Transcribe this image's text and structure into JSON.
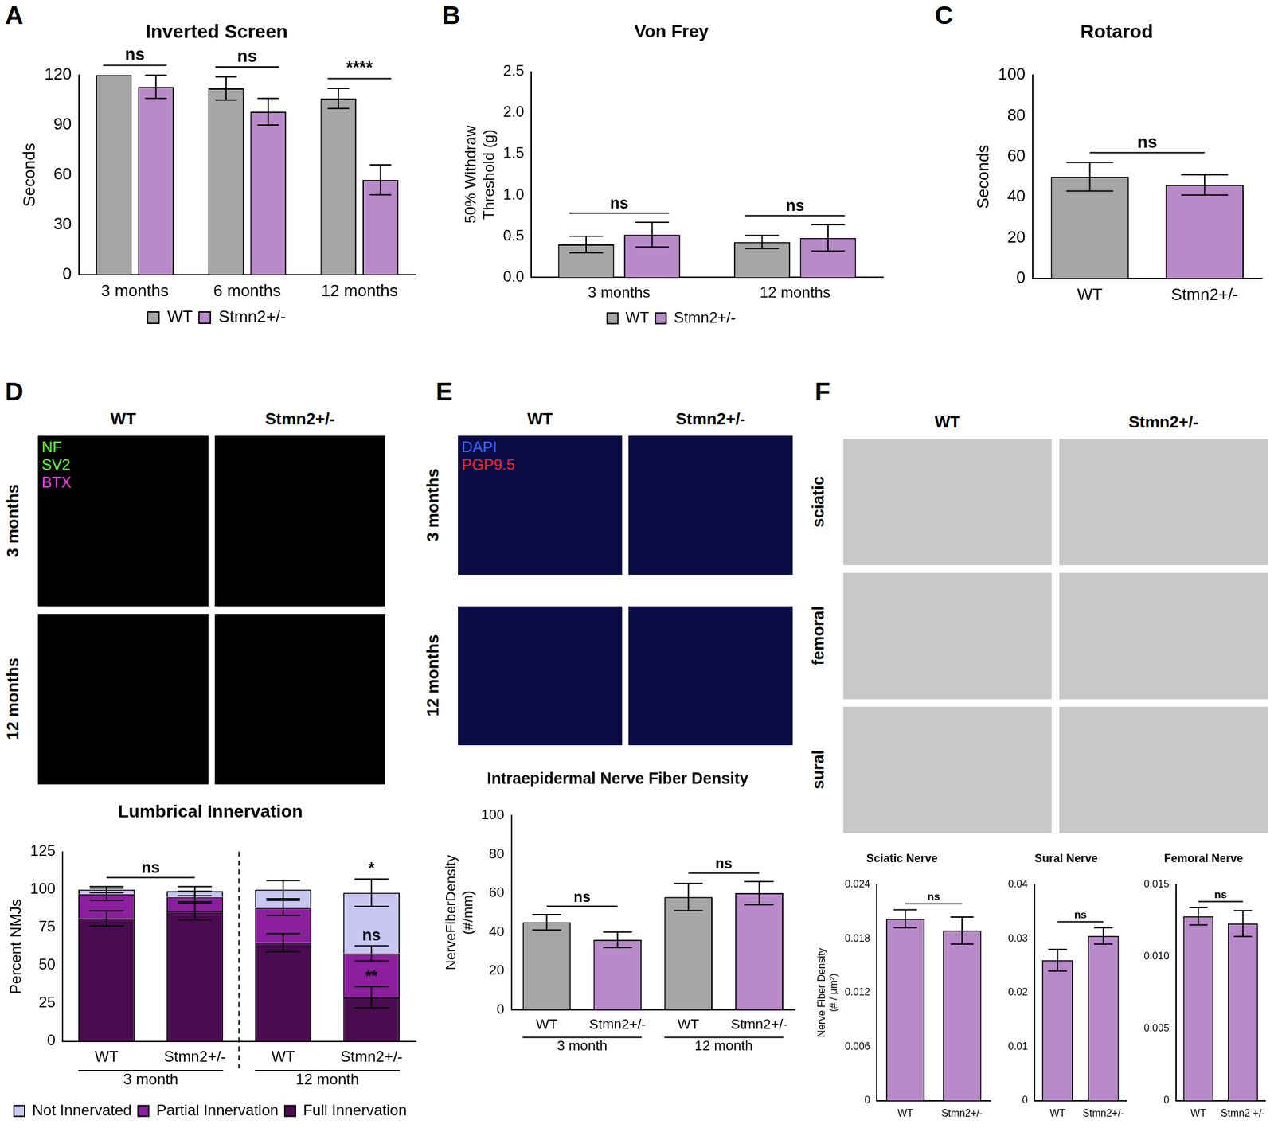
{
  "chart_data": [
    {
      "type": "bar",
      "title": "Inverted Screen",
      "ylabel": "Seconds",
      "categories": [
        "3 months",
        "6 months",
        "12 months"
      ],
      "series": [
        {
          "name": "WT",
          "color": "#a6a6a6",
          "values": [
            120,
            112,
            106
          ],
          "errors": [
            0,
            7,
            6
          ]
        },
        {
          "name": "Stmn2+/-",
          "color": "#b98ac9",
          "values": [
            113,
            98,
            57
          ],
          "errors": [
            7,
            8,
            9
          ]
        }
      ],
      "ylim": [
        0,
        120
      ],
      "yticks": [
        0,
        30,
        60,
        90,
        120
      ],
      "grid": false,
      "legend": "bottom",
      "annotations": [
        {
          "text": "ns",
          "category": 0
        },
        {
          "text": "ns",
          "category": 1
        },
        {
          "text": "****",
          "category": 2
        }
      ]
    },
    {
      "type": "bar",
      "title": "Von Frey",
      "ylabel": [
        "50% Withdraw",
        "Threshold (g)"
      ],
      "categories": [
        "3 months",
        "12 months"
      ],
      "series": [
        {
          "name": "WT",
          "color": "#a6a6a6",
          "values": [
            0.4,
            0.43
          ],
          "errors": [
            0.1,
            0.08
          ]
        },
        {
          "name": "Stmn2+/-",
          "color": "#b98ac9",
          "values": [
            0.52,
            0.48
          ],
          "errors": [
            0.15,
            0.16
          ]
        }
      ],
      "ylim": [
        0,
        2.5
      ],
      "yticks": [
        {
          "value": 0,
          "label": "0.0"
        },
        0.5,
        {
          "value": 1,
          "label": "1.0"
        },
        1.5,
        {
          "value": 2,
          "label": "2.0"
        },
        2.5
      ],
      "grid": false,
      "legend": "bottom",
      "annotations": [
        {
          "text": "ns",
          "category": 0
        },
        {
          "text": "ns",
          "category": 1
        }
      ]
    },
    {
      "type": "bar",
      "title": "Rotarod",
      "ylabel": "Seconds",
      "categories": [
        "WT",
        "Stmn2+/-"
      ],
      "values": [
        50,
        46
      ],
      "errors": [
        7,
        5
      ],
      "colors": [
        "#a6a6a6",
        "#b98ac9"
      ],
      "ylim": [
        0,
        100
      ],
      "yticks": [
        0,
        20,
        40,
        60,
        80,
        100
      ],
      "grid": false,
      "annotations": [
        {
          "text": "ns",
          "from": 0,
          "to": 1
        }
      ]
    },
    {
      "type": "bar",
      "title": "Lumbrical Innervation",
      "ylabel": "Percent NMJs",
      "stacked": true,
      "categories": [
        "WT",
        "Stmn2+/-",
        "WT",
        "Stmn2+/-"
      ],
      "groups": [
        {
          "label": "3 month",
          "categories": [
            0,
            1
          ]
        },
        {
          "label": "12 month",
          "categories": [
            2,
            3
          ]
        }
      ],
      "series": [
        {
          "name": "Full Innervation",
          "color": "#4a0b50",
          "values": [
            81,
            86,
            65,
            29
          ],
          "errors": [
            5,
            6,
            6,
            7
          ]
        },
        {
          "name": "Partial Innervation",
          "color": "#8b1f9e",
          "values": [
            16,
            9,
            23,
            29
          ],
          "errors": [
            4,
            4,
            5,
            5
          ]
        },
        {
          "name": "Not Innervated",
          "color": "#c9c6f2",
          "values": [
            3,
            4,
            12,
            40
          ],
          "errors": [
            2,
            3,
            6,
            9
          ]
        }
      ],
      "ylim": [
        0,
        125
      ],
      "yticks": [
        0,
        25,
        50,
        75,
        100,
        125
      ],
      "grid": false,
      "legend": "bottom",
      "annotations": [
        {
          "text": "ns",
          "from": 0,
          "to": 1
        },
        {
          "text": "*",
          "category": 3,
          "series": "Not Innervated"
        },
        {
          "text": "ns",
          "category": 3,
          "series": "Partial Innervation"
        },
        {
          "text": "**",
          "category": 3,
          "series": "Full Innervation"
        }
      ]
    },
    {
      "type": "bar",
      "title": "Intraepidermal Nerve Fiber Density",
      "ylabel": [
        "NerveFiberDensity",
        "(#/mm)"
      ],
      "categories": [
        "WT",
        "Stmn2+/-",
        "WT",
        "Stmn2+/-"
      ],
      "groups": [
        {
          "label": "3 month",
          "categories": [
            0,
            1
          ]
        },
        {
          "label": "12 month",
          "categories": [
            2,
            3
          ]
        }
      ],
      "values": [
        45,
        36,
        58,
        60
      ],
      "errors": [
        4,
        4,
        7,
        6
      ],
      "colors": [
        "#a6a6a6",
        "#b98ac9",
        "#a6a6a6",
        "#b98ac9"
      ],
      "ylim": [
        0,
        100
      ],
      "yticks": [
        0,
        20,
        40,
        60,
        80,
        100
      ],
      "grid": false,
      "annotations": [
        {
          "text": "ns",
          "from": 0,
          "to": 1
        },
        {
          "text": "ns",
          "from": 2,
          "to": 3
        }
      ]
    },
    {
      "type": "bar",
      "title": "Sciatic Nerve",
      "ylabel": [
        "Nerve Fiber Density",
        "(# / µm²)"
      ],
      "categories": [
        "WT",
        "Stmn2+/-"
      ],
      "values": [
        0.0202,
        0.0189
      ],
      "errors": [
        0.001,
        0.0015
      ],
      "colors": [
        "#b98ac9",
        "#b98ac9"
      ],
      "ylim": [
        0,
        0.024
      ],
      "yticks": [
        0,
        0.006,
        0.012,
        0.018,
        0.024
      ],
      "grid": false,
      "annotations": [
        {
          "text": "ns",
          "from": 0,
          "to": 1
        }
      ]
    },
    {
      "type": "bar",
      "title": "Sural Nerve",
      "categories": [
        "WT",
        "Stmn2+/-"
      ],
      "values": [
        0.026,
        0.0305
      ],
      "errors": [
        0.002,
        0.0015
      ],
      "colors": [
        "#b98ac9",
        "#b98ac9"
      ],
      "ylim": [
        0,
        0.04
      ],
      "yticks": [
        0,
        0.01,
        0.02,
        0.03,
        0.04
      ],
      "grid": false,
      "annotations": [
        {
          "text": "ns",
          "from": 0,
          "to": 1
        }
      ]
    },
    {
      "type": "bar",
      "title": "Femoral Nerve",
      "categories": [
        "WT",
        "Stmn2 +/-"
      ],
      "values": [
        0.0128,
        0.0123
      ],
      "errors": [
        0.0006,
        0.0009
      ],
      "colors": [
        "#b98ac9",
        "#b98ac9"
      ],
      "ylim": [
        0,
        0.015
      ],
      "yticks": [
        0,
        0.005,
        {
          "value": 0.01,
          "label": "0.010"
        },
        0.015
      ],
      "grid": false,
      "annotations": [
        {
          "text": "ns",
          "from": 0,
          "to": 1
        }
      ]
    }
  ],
  "figure": {
    "panels": [
      "A",
      "B",
      "C",
      "D",
      "E",
      "F"
    ],
    "image_panels": [
      {
        "panel": "D",
        "columns": [
          "WT",
          "Stmn2+/-"
        ],
        "rows": [
          "3 months",
          "12 months"
        ],
        "channels": [
          {
            "name": "NF",
            "color": "#66ff33"
          },
          {
            "name": "SV2",
            "color": "#66ff33"
          },
          {
            "name": "BTX",
            "color": "#ff44ff"
          }
        ]
      },
      {
        "panel": "E",
        "columns": [
          "WT",
          "Stmn2+/-"
        ],
        "rows": [
          "3 months",
          "12 months"
        ],
        "channels": [
          {
            "name": "DAPI",
            "color": "#3366ff"
          },
          {
            "name": "PGP9.5",
            "color": "#ff2222"
          }
        ]
      },
      {
        "panel": "F",
        "columns": [
          "WT",
          "Stmn2+/-"
        ],
        "rows": [
          "sciatic",
          "femoral",
          "sural"
        ],
        "channels": []
      }
    ]
  }
}
